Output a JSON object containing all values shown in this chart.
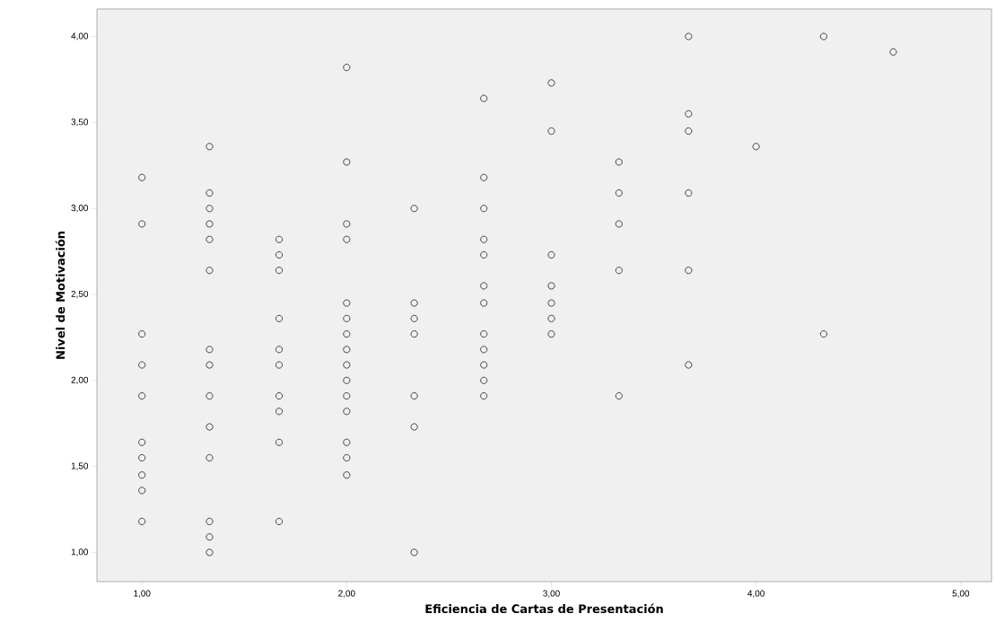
{
  "chart_data": {
    "type": "scatter",
    "xlabel": "Eficiencia de Cartas de Presentación",
    "ylabel": "Nivel de Motivación",
    "marker": "circle",
    "xlim": [
      0.78,
      5.15
    ],
    "ylim": [
      0.83,
      4.16
    ],
    "xticks": [
      {
        "value": 1,
        "label": "1,00"
      },
      {
        "value": 2,
        "label": "2,00"
      },
      {
        "value": 3,
        "label": "3,00"
      },
      {
        "value": 4,
        "label": "4,00"
      },
      {
        "value": 5,
        "label": "5,00"
      }
    ],
    "yticks": [
      {
        "value": 1,
        "label": "1,00"
      },
      {
        "value": 1.5,
        "label": "1,50"
      },
      {
        "value": 2,
        "label": "2,00"
      },
      {
        "value": 2.5,
        "label": "2,50"
      },
      {
        "value": 3,
        "label": "3,00"
      },
      {
        "value": 3.5,
        "label": "3,50"
      },
      {
        "value": 4,
        "label": "4,00"
      }
    ],
    "series": [
      {
        "color": "#333333",
        "x": [
          1,
          1,
          1,
          1,
          1,
          1,
          1,
          1,
          1,
          1,
          1.33,
          1.33,
          1.33,
          1.33,
          1.33,
          1.33,
          1.33,
          1.33,
          1.33,
          1.33,
          1.33,
          1.33,
          1.33,
          1.33,
          1.67,
          1.67,
          1.67,
          1.67,
          1.67,
          1.67,
          1.67,
          1.67,
          1.67,
          1.67,
          2,
          2,
          2,
          2,
          2,
          2,
          2,
          2,
          2,
          2,
          2,
          2,
          2,
          2,
          2,
          2.33,
          2.33,
          2.33,
          2.33,
          2.33,
          2.33,
          2.33,
          2.67,
          2.67,
          2.67,
          2.67,
          2.67,
          2.67,
          2.67,
          2.67,
          2.67,
          2.67,
          2.67,
          2.67,
          3,
          3,
          3,
          3,
          3,
          3,
          3,
          3.33,
          3.33,
          3.33,
          3.33,
          3.33,
          3.67,
          3.67,
          3.67,
          3.67,
          3.67,
          3.67,
          4,
          4.33,
          4.33,
          4.67
        ],
        "values": [
          3.18,
          2.91,
          2.27,
          2.09,
          1.91,
          1.64,
          1.55,
          1.45,
          1.36,
          1.18,
          3.36,
          3.09,
          3.0,
          2.91,
          2.82,
          2.64,
          2.18,
          2.09,
          1.91,
          1.73,
          1.55,
          1.18,
          1.09,
          1.0,
          2.82,
          2.73,
          2.64,
          2.36,
          2.18,
          2.09,
          1.91,
          1.82,
          1.64,
          1.18,
          3.82,
          3.27,
          2.91,
          2.82,
          2.45,
          2.36,
          2.27,
          2.18,
          2.09,
          2.0,
          1.91,
          1.82,
          1.64,
          1.55,
          1.45,
          3.0,
          2.45,
          2.36,
          2.27,
          1.91,
          1.73,
          1.0,
          3.64,
          3.18,
          3.0,
          2.82,
          2.73,
          2.55,
          2.45,
          2.27,
          2.18,
          2.09,
          2.0,
          1.91,
          3.73,
          3.45,
          2.73,
          2.55,
          2.45,
          2.36,
          2.27,
          3.27,
          3.09,
          2.91,
          2.64,
          1.91,
          4.0,
          3.55,
          3.45,
          3.09,
          2.64,
          2.09,
          3.36,
          4.0,
          2.27,
          3.91
        ]
      }
    ]
  }
}
